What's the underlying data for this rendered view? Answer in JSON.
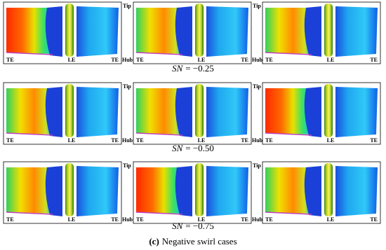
{
  "rows": [
    {
      "panels": [
        {
          "te_left": "TE",
          "le": "LE",
          "te_right": "TE",
          "tip": "Tip",
          "hub": "Hub"
        },
        {
          "te_left": "TE",
          "le": "LE",
          "te_right": "TE",
          "tip": "Tip",
          "hub": "Hub"
        },
        {
          "te_left": "TE",
          "le": "LE",
          "te_right": "TE"
        }
      ],
      "caption": {
        "variable": "SN",
        "value": "= −0.25"
      }
    },
    {
      "panels": [
        {
          "te_left": "TE",
          "le": "LE",
          "te_right": "TE",
          "tip": "Tip",
          "hub": "Hub"
        },
        {
          "te_left": "TE",
          "le": "LE",
          "te_right": "TE",
          "tip": "Tip",
          "hub": "Hub"
        },
        {
          "te_left": "TE",
          "le": "LE",
          "te_right": "TE"
        }
      ],
      "caption": {
        "variable": "SN",
        "value": "= −0.50"
      }
    },
    {
      "panels": [
        {
          "te_left": "TE",
          "le": "LE",
          "te_right": "TE",
          "tip": "Tip",
          "hub": "Hub"
        },
        {
          "te_left": "TE",
          "le": "LE",
          "te_right": "TE",
          "tip": "Tip",
          "hub": "Hub"
        },
        {
          "te_left": "TE",
          "le": "LE",
          "te_right": "TE"
        }
      ],
      "caption": {
        "variable": "SN",
        "value": "= −0.75"
      }
    }
  ],
  "figure_caption": {
    "label": "(c)",
    "text": "Negative swirl cases"
  }
}
